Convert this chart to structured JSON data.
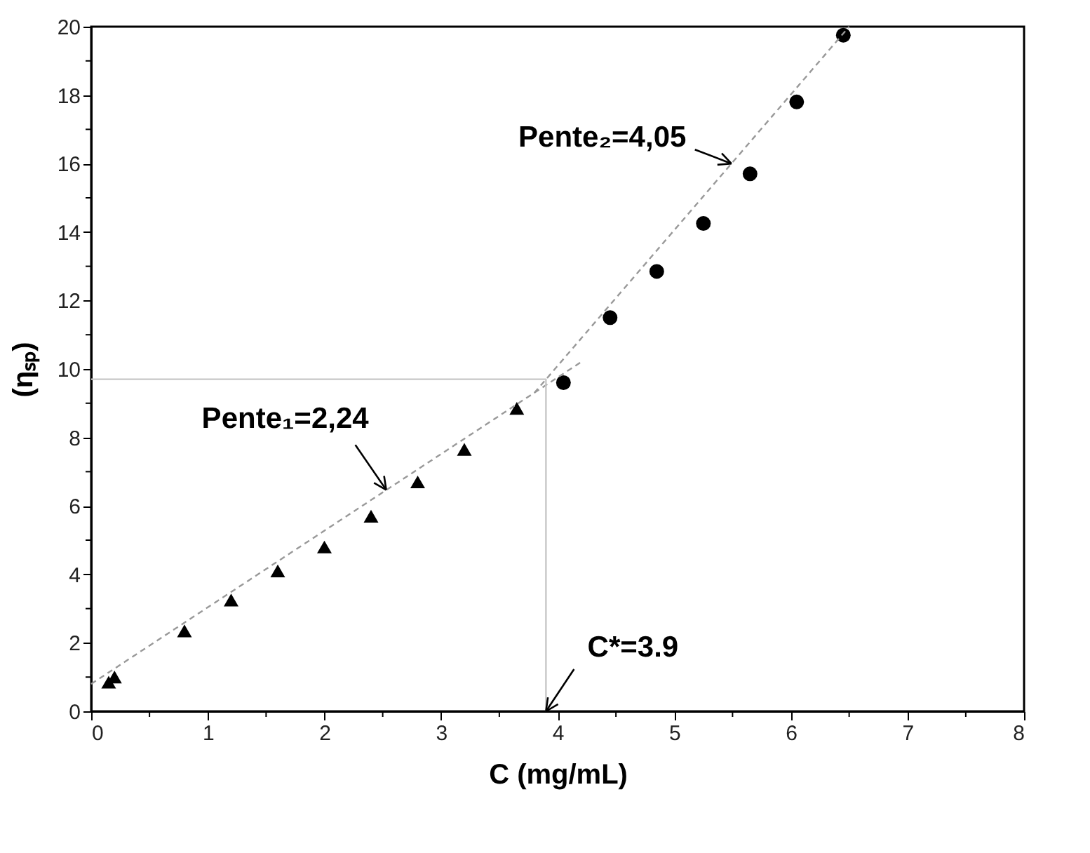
{
  "chart_data": {
    "type": "scatter",
    "xlabel": "C (mg/mL)",
    "ylabel": "(ηₛₚ)",
    "xlim": [
      0,
      8
    ],
    "ylim": [
      0,
      20
    ],
    "xticks": [
      0,
      {
        "value": 0.5,
        "label": null
      },
      1,
      {
        "value": 1.5,
        "label": null
      },
      2,
      {
        "value": 2.5,
        "label": null
      },
      3,
      {
        "value": 3.5,
        "label": null
      },
      4,
      {
        "value": 4.5,
        "label": null
      },
      5,
      {
        "value": 5.5,
        "label": null
      },
      6,
      {
        "value": 6.5,
        "label": null
      },
      7,
      {
        "value": 7.5,
        "label": null
      },
      8
    ],
    "yticks": [
      0,
      {
        "value": 1,
        "label": null
      },
      2,
      {
        "value": 3,
        "label": null
      },
      4,
      {
        "value": 5,
        "label": null
      },
      6,
      {
        "value": 7,
        "label": null
      },
      8,
      {
        "value": 9,
        "label": null
      },
      10,
      {
        "value": 11,
        "label": null
      },
      12,
      {
        "value": 13,
        "label": null
      },
      14,
      {
        "value": 15,
        "label": null
      },
      16,
      {
        "value": 17,
        "label": null
      },
      18,
      {
        "value": 19,
        "label": null
      },
      20
    ],
    "grid": false,
    "series": [
      {
        "type": "scatter",
        "marker": "triangle",
        "color": "#000000",
        "x": [
          0.15,
          0.2,
          0.8,
          1.2,
          1.6,
          2.0,
          2.4,
          2.8,
          3.2,
          3.65
        ],
        "values": [
          0.85,
          1.0,
          2.35,
          3.25,
          4.1,
          4.8,
          5.7,
          6.7,
          7.65,
          8.85
        ]
      },
      {
        "type": "scatter",
        "marker": "circle",
        "color": "#000000",
        "x": [
          4.05,
          4.45,
          4.85,
          5.25,
          5.65,
          6.05,
          6.45
        ],
        "values": [
          9.6,
          11.5,
          12.85,
          14.25,
          15.7,
          17.8,
          19.75
        ]
      },
      {
        "type": "line",
        "line_style": "dashed",
        "color": "#999999",
        "x": [
          0,
          4.2
        ],
        "values": [
          0.8,
          10.2
        ]
      },
      {
        "type": "line",
        "line_style": "dashed",
        "color": "#999999",
        "x": [
          3.8,
          6.5
        ],
        "values": [
          9.3,
          20
        ]
      },
      {
        "type": "line",
        "line_style": "solid",
        "color": "#c8c8c8",
        "x": [
          0,
          3.9,
          3.9
        ],
        "values": [
          9.7,
          9.7,
          0
        ]
      }
    ],
    "annotations": [
      {
        "text": "Pente₂=4,05",
        "x": 5.49,
        "y": 16.0
      },
      {
        "text": "Pente₁=2,24",
        "x": 2.53,
        "y": 6.47
      },
      {
        "text": "C*=3.9",
        "x": 3.9,
        "y": 0
      }
    ]
  }
}
